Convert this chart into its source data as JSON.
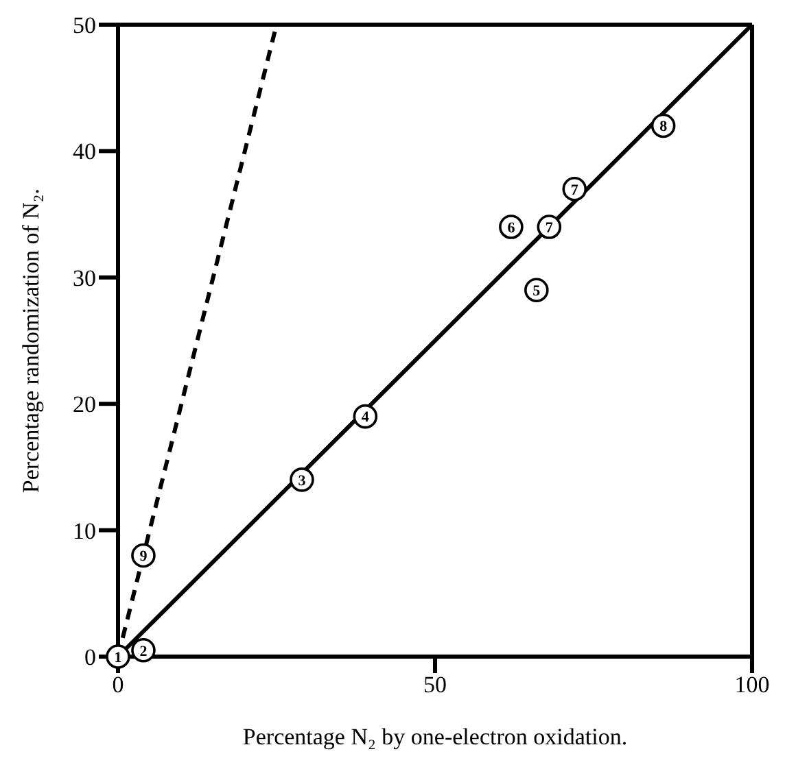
{
  "chart_data": {
    "type": "scatter",
    "xlabel": "Percentage N₂ by one-electron oxidation.",
    "ylabel": "Percentage randomization of N₂.",
    "xlim": [
      0,
      100
    ],
    "ylim": [
      0,
      50
    ],
    "xticks": [
      0,
      50,
      100
    ],
    "yticks": [
      0,
      10,
      20,
      30,
      40,
      50
    ],
    "legend": false,
    "marker": "circle",
    "series": [
      {
        "color": "#000000",
        "x": [
          0,
          4,
          4,
          29,
          39,
          66,
          62,
          68,
          72,
          86
        ],
        "values": [
          0,
          0.5,
          8,
          14,
          19,
          29,
          34,
          34,
          37,
          42
        ]
      },
      {
        "type": "line",
        "color": "#000000",
        "line_style": "solid",
        "marker": "none",
        "x": [
          0,
          100
        ],
        "values": [
          0,
          50
        ]
      },
      {
        "type": "line",
        "color": "#000000",
        "line_style": "dashed",
        "marker": "none",
        "x": [
          0,
          25
        ],
        "values": [
          0,
          50
        ]
      }
    ],
    "annotations": [
      {
        "text": "1",
        "x": 0,
        "y": 0
      },
      {
        "text": "2",
        "x": 4,
        "y": 0.5
      },
      {
        "text": "9",
        "x": 4,
        "y": 8
      },
      {
        "text": "3",
        "x": 29,
        "y": 14
      },
      {
        "text": "4",
        "x": 39,
        "y": 19
      },
      {
        "text": "5",
        "x": 66,
        "y": 29
      },
      {
        "text": "6",
        "x": 62,
        "y": 34
      },
      {
        "text": "7",
        "x": 68,
        "y": 34
      },
      {
        "text": "7",
        "x": 72,
        "y": 37
      },
      {
        "text": "8",
        "x": 86,
        "y": 42
      }
    ]
  }
}
